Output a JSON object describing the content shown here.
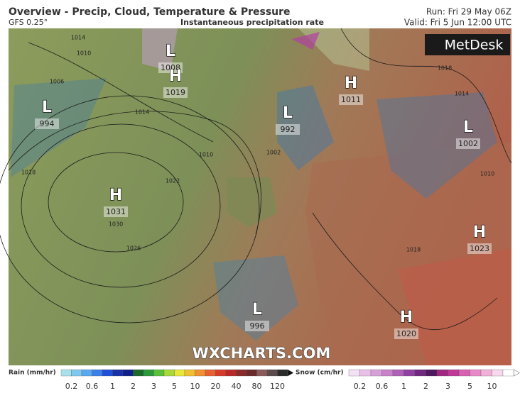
{
  "header": {
    "title": "Overview - Precip, Cloud, Temperature & Pressure",
    "model": "GFS 0.25°",
    "subtitle": "Instantaneous precipitation rate",
    "run": "Run: Fri 29 May 06Z",
    "valid": "Valid: Fri 5 Jun 12:00 UTC"
  },
  "logo": "MetDesk",
  "watermark": "WXCHARTS.COM",
  "pressure_centers": [
    {
      "symbol": "L",
      "value": 994
    },
    {
      "symbol": "L",
      "value": 1008
    },
    {
      "symbol": "H",
      "value": 1019
    },
    {
      "symbol": "L",
      "value": 992
    },
    {
      "symbol": "H",
      "value": 1011
    },
    {
      "symbol": "L",
      "value": 1002
    },
    {
      "symbol": "H",
      "value": 1031
    },
    {
      "symbol": "H",
      "value": 1023
    },
    {
      "symbol": "L",
      "value": 996
    },
    {
      "symbol": "H",
      "value": 1020
    }
  ],
  "isobar_labels": [
    1010,
    1014,
    1006,
    1018,
    1014,
    1010,
    1022,
    1026,
    1030,
    1002,
    1018,
    1014,
    1010,
    1018
  ],
  "legend": {
    "rain": {
      "label": "Rain (mm/hr)",
      "ticks": [
        0.2,
        0.6,
        1,
        2,
        3,
        5,
        10,
        20,
        40,
        80,
        120
      ],
      "colors": [
        "#a8e0ec",
        "#80c8f0",
        "#5aa8f0",
        "#3a80e8",
        "#2050d8",
        "#1830a8",
        "#10208a",
        "#1a6a2a",
        "#2a9a3a",
        "#5ac03a",
        "#a8d83a",
        "#e8e83a",
        "#f0c030",
        "#f09030",
        "#e86030",
        "#d83a2a",
        "#b82a2a",
        "#8a2a2a",
        "#6a2a2a",
        "#8a5a5a",
        "#5a4a4a",
        "#2a2a2a"
      ]
    },
    "snow": {
      "label": "Snow (cm/hr)",
      "ticks": [
        0.2,
        0.6,
        1,
        2,
        3,
        5,
        10
      ],
      "colors": [
        "#f4e0f4",
        "#e8c0e8",
        "#d8a0d8",
        "#c880c8",
        "#b060b8",
        "#9040a0",
        "#702880",
        "#501860",
        "#a02880",
        "#c03898",
        "#d860b0",
        "#e888c8",
        "#f0b0d8",
        "#f8d8ec",
        "#ffffff"
      ]
    }
  }
}
